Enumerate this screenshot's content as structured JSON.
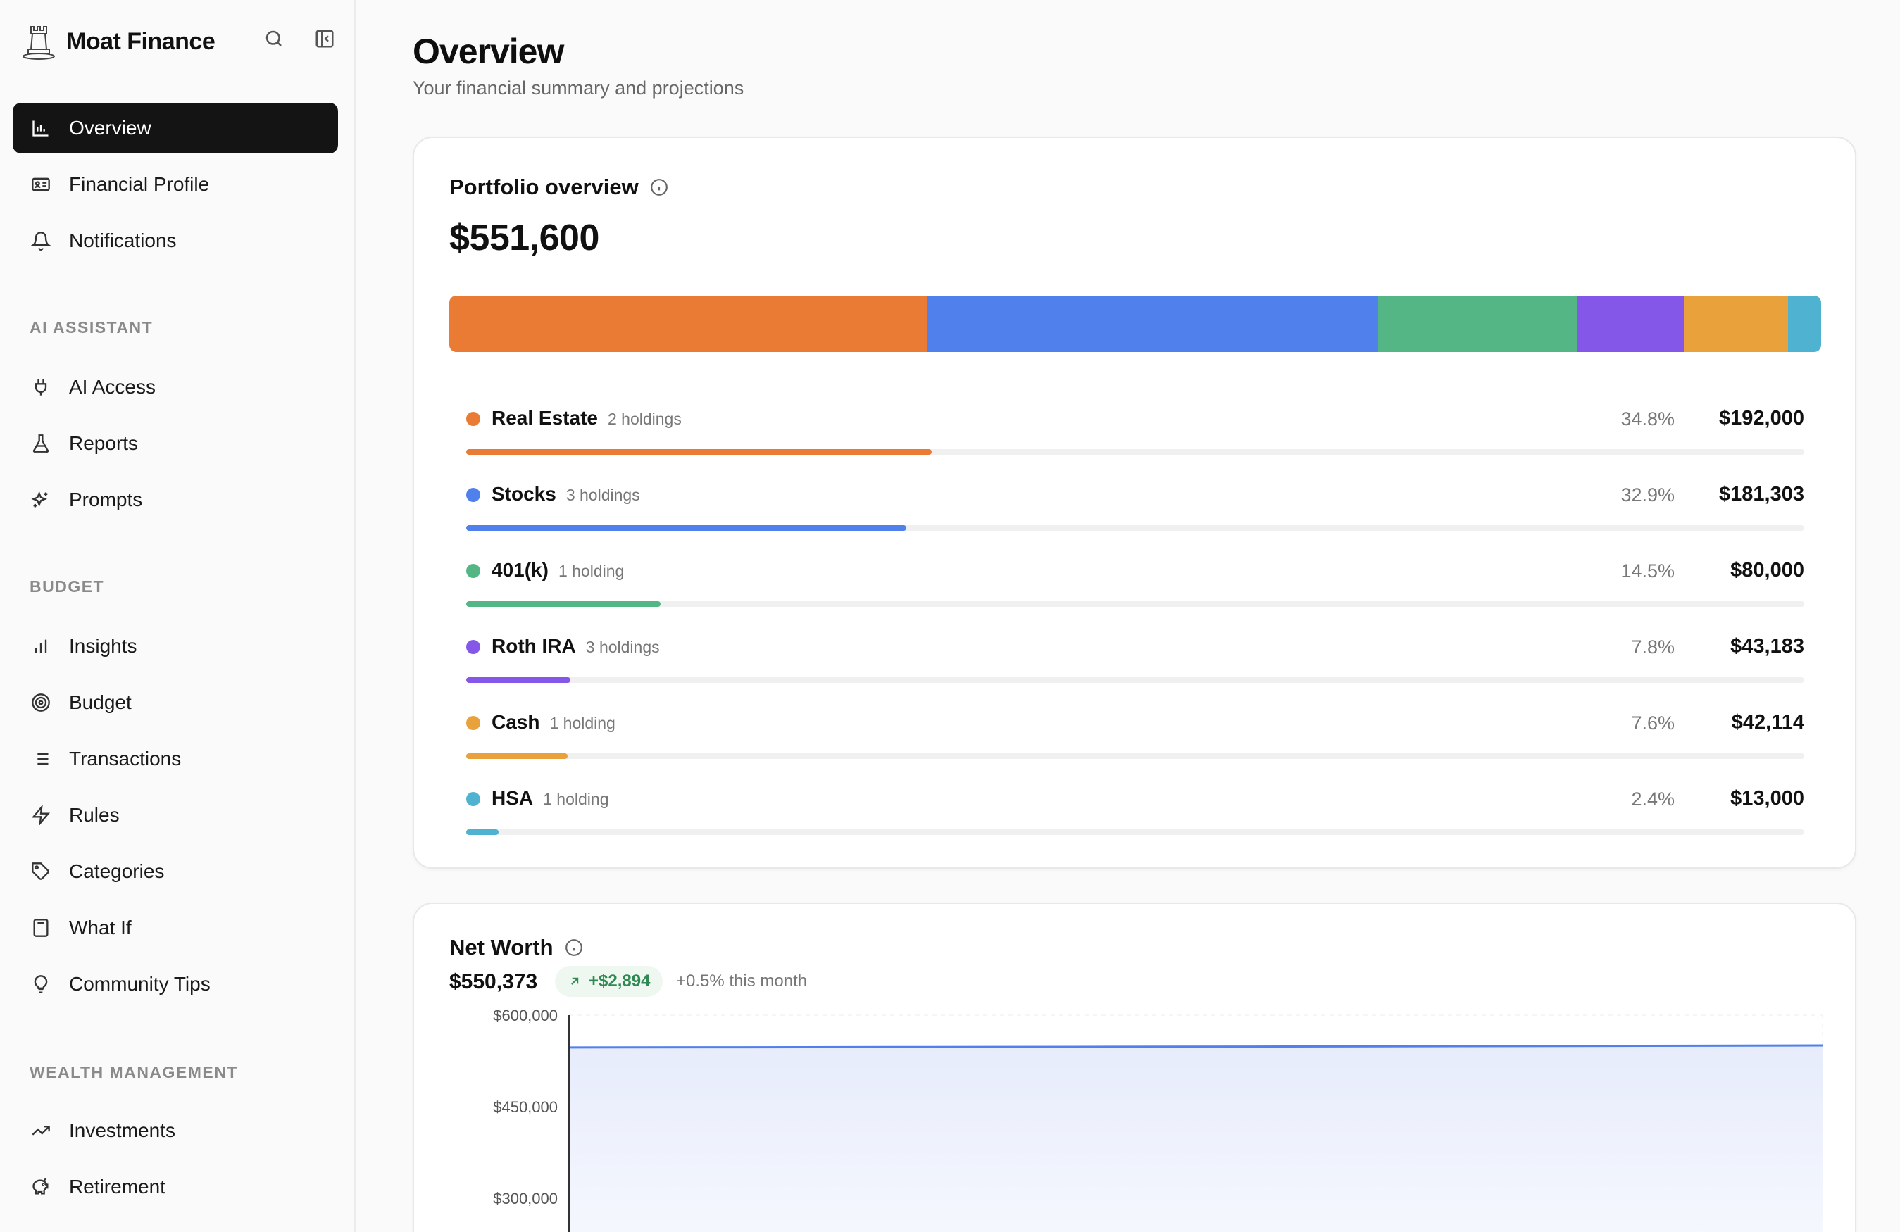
{
  "brand": {
    "name": "Moat Finance"
  },
  "sidebar": {
    "top_items": [
      {
        "label": "Overview",
        "icon": "bar-chart-icon",
        "active": true
      },
      {
        "label": "Financial Profile",
        "icon": "id-card-icon"
      },
      {
        "label": "Notifications",
        "icon": "bell-icon"
      }
    ],
    "sections": [
      {
        "title": "AI ASSISTANT",
        "items": [
          {
            "label": "AI Access",
            "icon": "plug-icon"
          },
          {
            "label": "Reports",
            "icon": "flask-icon"
          },
          {
            "label": "Prompts",
            "icon": "sparkles-icon"
          }
        ]
      },
      {
        "title": "BUDGET",
        "items": [
          {
            "label": "Insights",
            "icon": "bar-chart-icon"
          },
          {
            "label": "Budget",
            "icon": "target-icon"
          },
          {
            "label": "Transactions",
            "icon": "list-icon"
          },
          {
            "label": "Rules",
            "icon": "lightning-icon"
          },
          {
            "label": "Categories",
            "icon": "tag-icon"
          },
          {
            "label": "What If",
            "icon": "calculator-icon"
          },
          {
            "label": "Community Tips",
            "icon": "lightbulb-icon"
          }
        ]
      },
      {
        "title": "WEALTH MANAGEMENT",
        "items": [
          {
            "label": "Investments",
            "icon": "trend-up-icon"
          },
          {
            "label": "Retirement",
            "icon": "piggy-bank-icon"
          }
        ]
      }
    ]
  },
  "header": {
    "title": "Overview",
    "subtitle": "Your financial summary and projections"
  },
  "portfolio": {
    "title": "Portfolio overview",
    "total": "$551,600",
    "categories": [
      {
        "name": "Real Estate",
        "holdings": "2 holdings",
        "pct_label": "34.8%",
        "pct": 34.8,
        "amount": "$192,000",
        "color": "#e97b35"
      },
      {
        "name": "Stocks",
        "holdings": "3 holdings",
        "pct_label": "32.9%",
        "pct": 32.9,
        "amount": "$181,303",
        "color": "#4f80ec"
      },
      {
        "name": "401(k)",
        "holdings": "1 holding",
        "pct_label": "14.5%",
        "pct": 14.5,
        "amount": "$80,000",
        "color": "#54b685"
      },
      {
        "name": "Roth IRA",
        "holdings": "3 holdings",
        "pct_label": "7.8%",
        "pct": 7.8,
        "amount": "$43,183",
        "color": "#8457e8"
      },
      {
        "name": "Cash",
        "holdings": "1 holding",
        "pct_label": "7.6%",
        "pct": 7.6,
        "amount": "$42,114",
        "color": "#e9a23b"
      },
      {
        "name": "HSA",
        "holdings": "1 holding",
        "pct_label": "2.4%",
        "pct": 2.4,
        "amount": "$13,000",
        "color": "#4fb2d0"
      }
    ]
  },
  "net_worth": {
    "title": "Net Worth",
    "value": "$550,373",
    "change": "+$2,894",
    "change_note": "+0.5% this month",
    "change_color": "#2f8a52"
  },
  "chart_data": {
    "type": "area",
    "title": "",
    "xlabel": "",
    "ylabel": "",
    "y_ticks": [
      "$600,000",
      "$450,000",
      "$300,000"
    ],
    "ylim_visible": [
      300000,
      600000
    ],
    "series": [
      {
        "values": [
          547000,
          547400,
          547800,
          548200,
          548700,
          549200,
          549800,
          550373
        ]
      }
    ],
    "line_color": "#4f80ec",
    "fill_color": "#e7ecfb",
    "grid": true
  }
}
